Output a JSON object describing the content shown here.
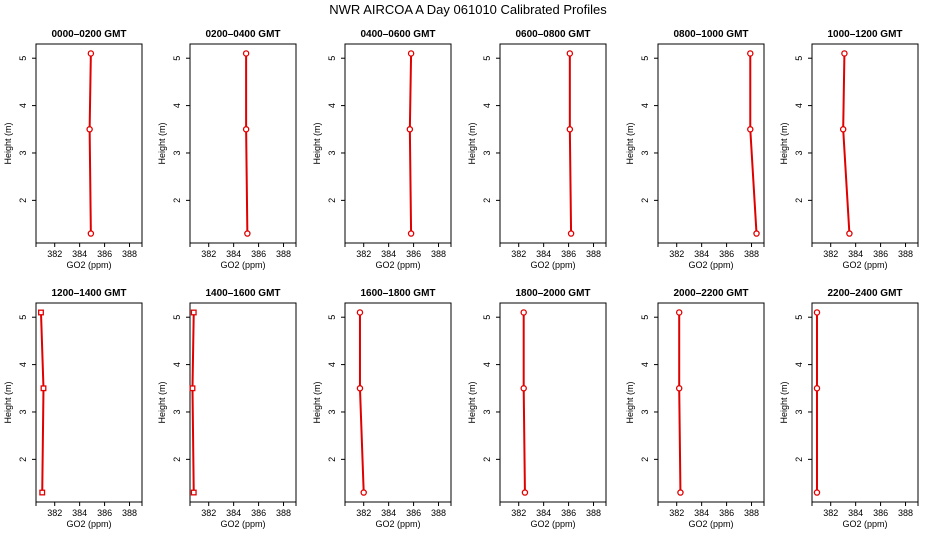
{
  "figure_title": "NWR AIRCOA A  Day 061010  Calibrated Profiles",
  "colors": {
    "profile": "#e00000",
    "axes": "#000000",
    "background": "#ffffff"
  },
  "chart_data": [
    {
      "type": "line",
      "title": "0000–0200 GMT",
      "xlabel": "GO2 (ppm)",
      "ylabel": "Height (m)",
      "xlim": [
        380.5,
        389.0
      ],
      "ylim": [
        1.1,
        5.3
      ],
      "xticks": [
        "382",
        "384",
        "386",
        "388"
      ],
      "yticks": [
        "2",
        "3",
        "4",
        "5"
      ],
      "grid": false,
      "series": [
        {
          "x": [
            384.9,
            384.8,
            384.9
          ],
          "y": [
            1.3,
            3.5,
            5.1
          ],
          "markers": "circle"
        }
      ]
    },
    {
      "type": "line",
      "title": "0200–0400 GMT",
      "xlabel": "GO2 (ppm)",
      "ylabel": "Height (m)",
      "xlim": [
        380.5,
        389.0
      ],
      "ylim": [
        1.1,
        5.3
      ],
      "xticks": [
        "382",
        "384",
        "386",
        "388"
      ],
      "yticks": [
        "2",
        "3",
        "4",
        "5"
      ],
      "grid": false,
      "series": [
        {
          "x": [
            385.1,
            385.0,
            385.0
          ],
          "y": [
            1.3,
            3.5,
            5.1
          ],
          "markers": "circle"
        }
      ]
    },
    {
      "type": "line",
      "title": "0400–0600 GMT",
      "xlabel": "GO2 (ppm)",
      "ylabel": "Height (m)",
      "xlim": [
        380.5,
        389.0
      ],
      "ylim": [
        1.1,
        5.3
      ],
      "xticks": [
        "382",
        "384",
        "386",
        "388"
      ],
      "yticks": [
        "2",
        "3",
        "4",
        "5"
      ],
      "grid": false,
      "series": [
        {
          "x": [
            385.8,
            385.7,
            385.8
          ],
          "y": [
            1.3,
            3.5,
            5.1
          ],
          "markers": "circle"
        }
      ]
    },
    {
      "type": "line",
      "title": "0600–0800 GMT",
      "xlabel": "GO2 (ppm)",
      "ylabel": "Height (m)",
      "xlim": [
        380.5,
        389.0
      ],
      "ylim": [
        1.1,
        5.3
      ],
      "xticks": [
        "382",
        "384",
        "386",
        "388"
      ],
      "yticks": [
        "2",
        "3",
        "4",
        "5"
      ],
      "grid": false,
      "series": [
        {
          "x": [
            386.2,
            386.1,
            386.1
          ],
          "y": [
            1.3,
            3.5,
            5.1
          ],
          "markers": "circle"
        }
      ]
    },
    {
      "type": "line",
      "title": "0800–1000 GMT",
      "xlabel": "GO2 (ppm)",
      "ylabel": "Height (m)",
      "xlim": [
        380.5,
        389.0
      ],
      "ylim": [
        1.1,
        5.3
      ],
      "xticks": [
        "382",
        "384",
        "386",
        "388"
      ],
      "yticks": [
        "2",
        "3",
        "4",
        "5"
      ],
      "grid": false,
      "series": [
        {
          "x": [
            388.4,
            387.9,
            387.9
          ],
          "y": [
            1.3,
            3.5,
            5.1
          ],
          "markers": "circle"
        }
      ]
    },
    {
      "type": "line",
      "title": "1000–1200 GMT",
      "xlabel": "GO2 (ppm)",
      "ylabel": "Height (m)",
      "xlim": [
        380.5,
        389.0
      ],
      "ylim": [
        1.1,
        5.3
      ],
      "xticks": [
        "382",
        "384",
        "386",
        "388"
      ],
      "yticks": [
        "2",
        "3",
        "4",
        "5"
      ],
      "grid": false,
      "series": [
        {
          "x": [
            383.5,
            383.0,
            383.1
          ],
          "y": [
            1.3,
            3.5,
            5.1
          ],
          "markers": "circle"
        }
      ]
    },
    {
      "type": "line",
      "title": "1200–1400 GMT",
      "xlabel": "GO2 (ppm)",
      "ylabel": "Height (m)",
      "xlim": [
        380.5,
        389.0
      ],
      "ylim": [
        1.1,
        5.3
      ],
      "xticks": [
        "382",
        "384",
        "386",
        "388"
      ],
      "yticks": [
        "2",
        "3",
        "4",
        "5"
      ],
      "grid": false,
      "series": [
        {
          "x": [
            381.0,
            381.1,
            380.9
          ],
          "y": [
            1.3,
            3.5,
            5.1
          ],
          "markers": "square"
        }
      ]
    },
    {
      "type": "line",
      "title": "1400–1600 GMT",
      "xlabel": "GO2 (ppm)",
      "ylabel": "Height (m)",
      "xlim": [
        380.5,
        389.0
      ],
      "ylim": [
        1.1,
        5.3
      ],
      "xticks": [
        "382",
        "384",
        "386",
        "388"
      ],
      "yticks": [
        "2",
        "3",
        "4",
        "5"
      ],
      "grid": false,
      "series": [
        {
          "x": [
            380.8,
            380.7,
            380.8
          ],
          "y": [
            1.3,
            3.5,
            5.1
          ],
          "markers": "square"
        }
      ]
    },
    {
      "type": "line",
      "title": "1600–1800 GMT",
      "xlabel": "GO2 (ppm)",
      "ylabel": "Height (m)",
      "xlim": [
        380.5,
        389.0
      ],
      "ylim": [
        1.1,
        5.3
      ],
      "xticks": [
        "382",
        "384",
        "386",
        "388"
      ],
      "yticks": [
        "2",
        "3",
        "4",
        "5"
      ],
      "grid": false,
      "series": [
        {
          "x": [
            382.0,
            381.7,
            381.7
          ],
          "y": [
            1.3,
            3.5,
            5.1
          ],
          "markers": "circle"
        }
      ]
    },
    {
      "type": "line",
      "title": "1800–2000 GMT",
      "xlabel": "GO2 (ppm)",
      "ylabel": "Height (m)",
      "xlim": [
        380.5,
        389.0
      ],
      "ylim": [
        1.1,
        5.3
      ],
      "xticks": [
        "382",
        "384",
        "386",
        "388"
      ],
      "yticks": [
        "2",
        "3",
        "4",
        "5"
      ],
      "grid": false,
      "series": [
        {
          "x": [
            382.5,
            382.4,
            382.4
          ],
          "y": [
            1.3,
            3.5,
            5.1
          ],
          "markers": "circle"
        }
      ]
    },
    {
      "type": "line",
      "title": "2000–2200 GMT",
      "xlabel": "GO2 (ppm)",
      "ylabel": "Height (m)",
      "xlim": [
        380.5,
        389.0
      ],
      "ylim": [
        1.1,
        5.3
      ],
      "xticks": [
        "382",
        "384",
        "386",
        "388"
      ],
      "yticks": [
        "2",
        "3",
        "4",
        "5"
      ],
      "grid": false,
      "series": [
        {
          "x": [
            382.3,
            382.2,
            382.2
          ],
          "y": [
            1.3,
            3.5,
            5.1
          ],
          "markers": "circle"
        }
      ]
    },
    {
      "type": "line",
      "title": "2200–2400 GMT",
      "xlabel": "GO2 (ppm)",
      "ylabel": "Height (m)",
      "xlim": [
        380.5,
        389.0
      ],
      "ylim": [
        1.1,
        5.3
      ],
      "xticks": [
        "382",
        "384",
        "386",
        "388"
      ],
      "yticks": [
        "2",
        "3",
        "4",
        "5"
      ],
      "grid": false,
      "series": [
        {
          "x": [
            380.9,
            380.9,
            380.9
          ],
          "y": [
            1.3,
            3.5,
            5.1
          ],
          "markers": "circle"
        }
      ]
    }
  ]
}
